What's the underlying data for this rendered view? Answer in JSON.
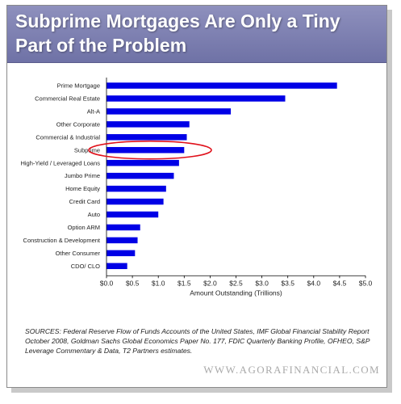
{
  "title": "Subprime Mortgages Are Only a Tiny Part of the Problem",
  "sources": "SOURCES: Federal Reserve Flow of Funds Accounts of the United States, IMF Global Financial Stability Report October 2008, Goldman Sachs Global Economics Paper No. 177, FDIC Quarterly Banking Profile, OFHEO, S&P Leverage Commentary & Data, T2 Partners estimates.",
  "watermark": "WWW.AGORAFINANCIAL.COM",
  "highlight": {
    "category": "Subprime",
    "color": "#e0101a"
  },
  "colors": {
    "bar": "#0000e6",
    "title_bg": "#7d80b3"
  },
  "chart_data": {
    "type": "bar",
    "orientation": "horizontal",
    "xlabel": "Amount Outstanding (Trillions)",
    "xlim": [
      0,
      5
    ],
    "ticks": [
      0,
      0.5,
      1,
      1.5,
      2,
      2.5,
      3,
      3.5,
      4,
      4.5,
      5
    ],
    "tick_labels": [
      "$0.0",
      "$0.5",
      "$1.0",
      "$1.5",
      "$2.0",
      "$2.5",
      "$3.0",
      "$3.5",
      "$4.0",
      "$4.5",
      "$5.0"
    ],
    "grid": false,
    "categories": [
      "Prime Mortgage",
      "Commercial Real Estate",
      "Alt-A",
      "Other Corporate",
      "Commercial & Industrial",
      "Subprime",
      "High-Yield / Leveraged Loans",
      "Jumbo Prime",
      "Home Equity",
      "Credit Card",
      "Auto",
      "Option ARM",
      "Construction & Development",
      "Other Consumer",
      "CDO/ CLO"
    ],
    "values": [
      4.45,
      3.45,
      2.4,
      1.6,
      1.55,
      1.5,
      1.4,
      1.3,
      1.15,
      1.1,
      1.0,
      0.65,
      0.6,
      0.55,
      0.4
    ]
  }
}
